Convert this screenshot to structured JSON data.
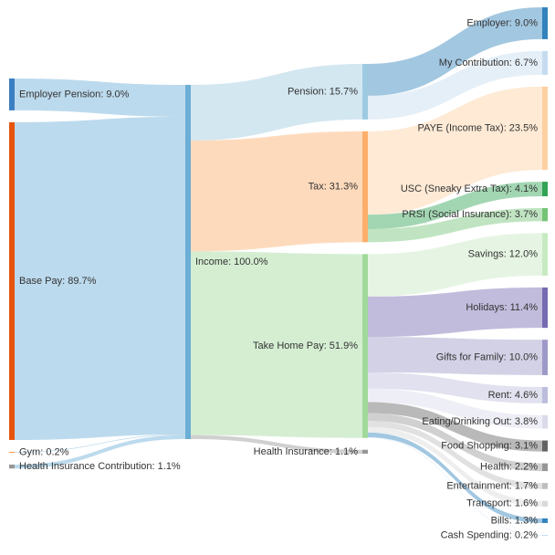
{
  "chart_data": {
    "type": "sankey",
    "nodes": [
      {
        "label": "Employer Pension: 9.0%",
        "value": 9.0,
        "color": "#3a7fc1"
      },
      {
        "label": "Base Pay: 89.7%",
        "value": 89.7,
        "color": "#e6550d"
      },
      {
        "label": "Gym: 0.2%",
        "value": 0.2,
        "color": "#fd8d3c"
      },
      {
        "label": "Health Insurance Contribution: 1.1%",
        "value": 1.1,
        "color": "#969696"
      },
      {
        "label": "Income: 100.0%",
        "value": 100.0,
        "color": "#6baed6"
      },
      {
        "label": "Pension: 15.7%",
        "value": 15.7,
        "color": "#9ecae1"
      },
      {
        "label": "Tax: 31.3%",
        "value": 31.3,
        "color": "#fdae6b"
      },
      {
        "label": "Take Home Pay: 51.9%",
        "value": 51.9,
        "color": "#a1d99b"
      },
      {
        "label": "Health Insurance: 1.1%",
        "value": 1.1,
        "color": "#969696"
      },
      {
        "label": "Employer: 9.0%",
        "value": 9.0,
        "color": "#3182bd"
      },
      {
        "label": "My Contribution: 6.7%",
        "value": 6.7,
        "color": "#c6dbef"
      },
      {
        "label": "PAYE (Income Tax): 23.5%",
        "value": 23.5,
        "color": "#fdd0a2"
      },
      {
        "label": "USC (Sneaky Extra Tax): 4.1%",
        "value": 4.1,
        "color": "#31a354"
      },
      {
        "label": "PRSI (Social Insurance): 3.7%",
        "value": 3.7,
        "color": "#74c476"
      },
      {
        "label": "Savings: 12.0%",
        "value": 12.0,
        "color": "#c7e9c0"
      },
      {
        "label": "Holidays: 11.4%",
        "value": 11.4,
        "color": "#756bb1"
      },
      {
        "label": "Gifts for Family: 10.0%",
        "value": 10.0,
        "color": "#9e9ac8"
      },
      {
        "label": "Rent: 4.6%",
        "value": 4.6,
        "color": "#bcbddc"
      },
      {
        "label": "Eating/Drinking Out: 3.8%",
        "value": 3.8,
        "color": "#dadaeb"
      },
      {
        "label": "Food Shopping: 3.1%",
        "value": 3.1,
        "color": "#636363"
      },
      {
        "label": "Health: 2.2%",
        "value": 2.2,
        "color": "#969696"
      },
      {
        "label": "Entertainment: 1.7%",
        "value": 1.7,
        "color": "#bdbdbd"
      },
      {
        "label": "Transport: 1.6%",
        "value": 1.6,
        "color": "#d9d9d9"
      },
      {
        "label": "Bills: 1.3%",
        "value": 1.3,
        "color": "#3182bd"
      },
      {
        "label": "Cash Spending: 0.2%",
        "value": 0.2,
        "color": "#c6dbef"
      }
    ],
    "links": [
      {
        "source": 0,
        "target": 4,
        "value": 9.0
      },
      {
        "source": 1,
        "target": 4,
        "value": 89.7
      },
      {
        "source": 2,
        "target": 4,
        "value": 0.2
      },
      {
        "source": 3,
        "target": 4,
        "value": 1.1
      },
      {
        "source": 4,
        "target": 5,
        "value": 15.7
      },
      {
        "source": 4,
        "target": 6,
        "value": 31.3
      },
      {
        "source": 4,
        "target": 7,
        "value": 51.9
      },
      {
        "source": 4,
        "target": 8,
        "value": 1.1
      },
      {
        "source": 5,
        "target": 9,
        "value": 9.0
      },
      {
        "source": 5,
        "target": 10,
        "value": 6.7
      },
      {
        "source": 6,
        "target": 11,
        "value": 23.5
      },
      {
        "source": 6,
        "target": 12,
        "value": 4.1
      },
      {
        "source": 6,
        "target": 13,
        "value": 3.7
      },
      {
        "source": 7,
        "target": 14,
        "value": 12.0
      },
      {
        "source": 7,
        "target": 15,
        "value": 11.4
      },
      {
        "source": 7,
        "target": 16,
        "value": 10.0
      },
      {
        "source": 7,
        "target": 17,
        "value": 4.6
      },
      {
        "source": 7,
        "target": 18,
        "value": 3.8
      },
      {
        "source": 7,
        "target": 19,
        "value": 3.1
      },
      {
        "source": 7,
        "target": 20,
        "value": 2.2
      },
      {
        "source": 7,
        "target": 21,
        "value": 1.7
      },
      {
        "source": 7,
        "target": 22,
        "value": 1.6
      },
      {
        "source": 7,
        "target": 23,
        "value": 1.3
      },
      {
        "source": 7,
        "target": 24,
        "value": 0.2
      }
    ]
  }
}
